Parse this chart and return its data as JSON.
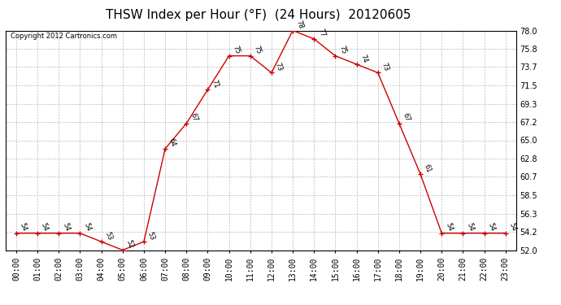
{
  "title": "THSW Index per Hour (°F)  (24 Hours)  20120605",
  "copyright": "Copyright 2012 Cartronics.com",
  "hours": [
    0,
    1,
    2,
    3,
    4,
    5,
    6,
    7,
    8,
    9,
    10,
    11,
    12,
    13,
    14,
    15,
    16,
    17,
    18,
    19,
    20,
    21,
    22,
    23
  ],
  "values": [
    54,
    54,
    54,
    54,
    53,
    52,
    53,
    64,
    67,
    71,
    75,
    75,
    73,
    78,
    77,
    75,
    74,
    73,
    67,
    61,
    54,
    54,
    54,
    54
  ],
  "line_color": "#cc0000",
  "marker_color": "#cc0000",
  "bg_color": "#ffffff",
  "plot_bg_color": "#ffffff",
  "grid_color": "#bbbbbb",
  "ylim": [
    52.0,
    78.0
  ],
  "yticks": [
    52.0,
    54.2,
    56.3,
    58.5,
    60.7,
    62.8,
    65.0,
    67.2,
    69.3,
    71.5,
    73.7,
    75.8,
    78.0
  ],
  "title_fontsize": 11,
  "tick_fontsize": 7,
  "annotation_fontsize": 6,
  "copyright_fontsize": 6
}
